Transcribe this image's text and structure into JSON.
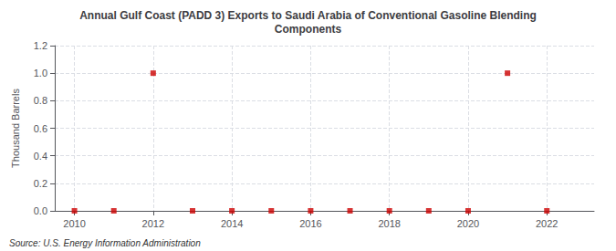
{
  "chart_data": {
    "type": "scatter",
    "title": "Annual Gulf Coast (PADD 3) Exports to Saudi Arabia of Conventional Gasoline Blending\nComponents",
    "y_label": "Thousand Barrels",
    "annotation": "Source: U.S. Energy Information Administration",
    "x": [
      2010,
      2011,
      2012,
      2013,
      2014,
      2015,
      2016,
      2017,
      2018,
      2019,
      2020,
      2021,
      2022
    ],
    "values": [
      0,
      0,
      1.0,
      0,
      0,
      0,
      0,
      0,
      0,
      0,
      0,
      1.0,
      0
    ],
    "color": "#cc0000",
    "marker": "square",
    "xlim": [
      2009.5,
      2023.2
    ],
    "xticks": [
      2010,
      2012,
      2014,
      2016,
      2018,
      2020,
      2022
    ],
    "ylim": [
      0.0,
      1.2
    ],
    "yticks": [
      {
        "value": 0.0,
        "label": "0.0"
      },
      {
        "value": 0.2,
        "label": "0.2"
      },
      {
        "value": 0.4,
        "label": "0.4"
      },
      {
        "value": 0.6,
        "label": "0.6"
      },
      {
        "value": 0.8,
        "label": "0.8"
      },
      {
        "value": 1.0,
        "label": "1.0"
      },
      {
        "value": 1.2,
        "label": "1.2"
      }
    ],
    "grid": true
  }
}
